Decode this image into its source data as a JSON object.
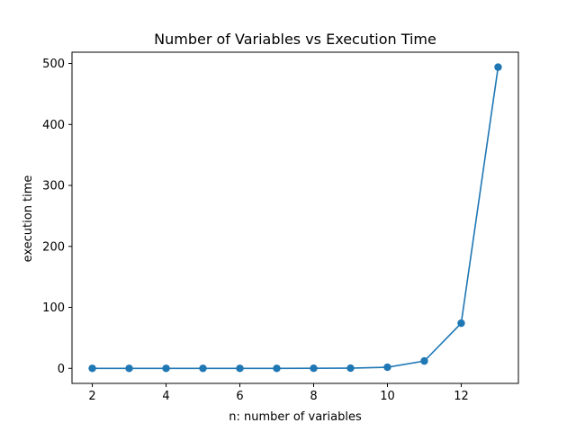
{
  "chart_data": {
    "type": "line",
    "title": "Number of Variables vs Execution Time",
    "xlabel": "n: number of variables",
    "ylabel": "execution time",
    "xlim": [
      1.45,
      13.55
    ],
    "ylim": [
      -24.7,
      518.5
    ],
    "xticks": [
      2,
      4,
      6,
      8,
      10,
      12
    ],
    "yticks": [
      0,
      100,
      200,
      300,
      400,
      500
    ],
    "grid": false,
    "line_color": "#1f77b4",
    "series": [
      {
        "x": [
          2,
          3,
          4,
          5,
          6,
          7,
          8,
          9,
          10,
          11,
          12,
          13
        ],
        "values": [
          0,
          0,
          0,
          0,
          0,
          0,
          0.1,
          0.3,
          1.8,
          12,
          74,
          494
        ]
      }
    ]
  }
}
